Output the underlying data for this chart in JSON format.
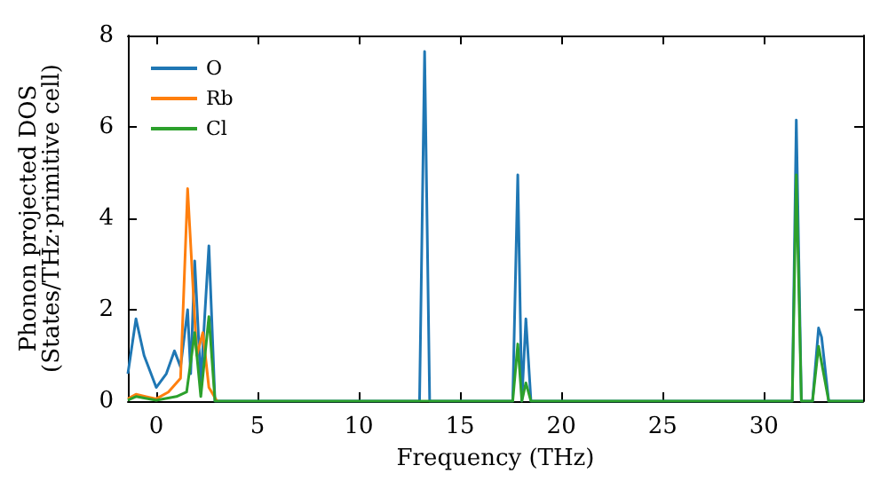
{
  "chart_data": {
    "type": "line",
    "xlabel": "Frequency (THz)",
    "ylabel": "Phonon projected DOS\n(States/THz·primitive cell)",
    "xlim": [
      -1.4,
      34.9
    ],
    "ylim": [
      0,
      8
    ],
    "xticks": [
      0,
      5,
      10,
      15,
      20,
      25,
      30
    ],
    "yticks": [
      0,
      2,
      4,
      6,
      8
    ],
    "grid": false,
    "legend": "top left",
    "marker": "none",
    "line_style": "solid",
    "series": [
      {
        "name": "O",
        "color": "#1f77b4",
        "x": [
          -1.4,
          -1.0,
          -0.6,
          0,
          0.5,
          0.9,
          1.2,
          1.55,
          1.7,
          1.9,
          2.2,
          2.6,
          2.9,
          13.0,
          13.25,
          13.5,
          17.6,
          17.85,
          18.05,
          18.25,
          18.5,
          31.4,
          31.6,
          31.85,
          32.4,
          32.7,
          32.85,
          33.2,
          34.9
        ],
        "values": [
          0.6,
          1.8,
          1.0,
          0.3,
          0.6,
          1.1,
          0.75,
          2.0,
          0.6,
          3.07,
          0.4,
          3.4,
          0,
          0,
          7.65,
          0,
          0,
          4.95,
          0,
          1.8,
          0,
          0,
          6.15,
          0,
          0,
          1.6,
          1.4,
          0,
          0
        ]
      },
      {
        "name": "Rb",
        "color": "#ff7f0e",
        "x": [
          -1.4,
          -1.0,
          -0.5,
          0,
          0.6,
          1.2,
          1.55,
          2.0,
          2.3,
          2.6,
          3.0
        ],
        "values": [
          0.05,
          0.15,
          0.1,
          0.05,
          0.2,
          0.5,
          4.65,
          1.0,
          1.5,
          0.3,
          0
        ]
      },
      {
        "name": "Cl",
        "color": "#2ca02c",
        "x": [
          -1.4,
          -1.0,
          0,
          1.0,
          1.5,
          1.9,
          2.2,
          2.6,
          2.9,
          17.6,
          17.85,
          18.05,
          18.25,
          18.5,
          31.4,
          31.6,
          31.85,
          32.4,
          32.7,
          33.2,
          34.9
        ],
        "values": [
          0.02,
          0.1,
          0.02,
          0.1,
          0.2,
          1.5,
          0.1,
          1.85,
          0,
          0,
          1.25,
          0,
          0.4,
          0,
          0,
          4.95,
          0,
          0,
          1.2,
          0,
          0
        ]
      }
    ]
  }
}
